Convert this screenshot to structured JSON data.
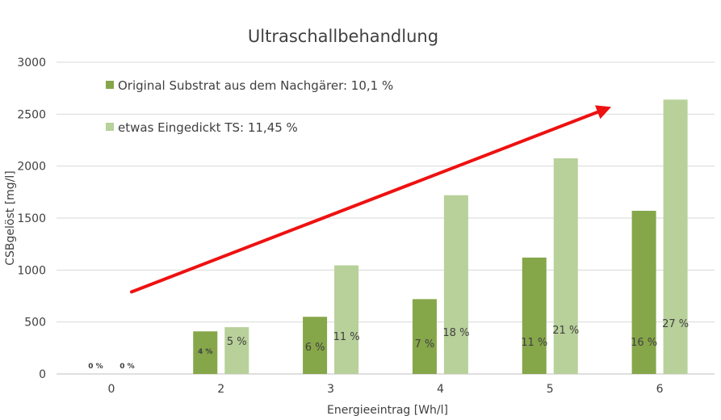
{
  "chart_data": {
    "type": "bar",
    "title": "Ultraschallbehandlung",
    "xlabel": "Energieeintrag [Wh/l]",
    "ylabel": "CSBgelöst [mg/l]",
    "categories": [
      "0",
      "2",
      "3",
      "4",
      "5",
      "6"
    ],
    "ylim": [
      0,
      3000
    ],
    "yticks": [
      "0",
      "500",
      "1000",
      "1500",
      "2000",
      "2500",
      "3000"
    ],
    "grid": true,
    "legend_position": "top-left",
    "series": [
      {
        "name": "Original Substrat aus dem Nachgärer: 10,1 %",
        "color": "#86a64a",
        "values": [
          0,
          410,
          550,
          720,
          1120,
          1570
        ],
        "labels": [
          "0 %",
          "4 %",
          "6 %",
          "7 %",
          "11 %",
          "16 %"
        ]
      },
      {
        "name": "etwas Eingedickt TS: 11,45 %",
        "color": "#b8d09a",
        "values": [
          0,
          450,
          1045,
          1720,
          2075,
          2640
        ],
        "labels": [
          "0 %",
          "5 %",
          "11 %",
          "18 %",
          "21 %",
          "27 %"
        ]
      }
    ],
    "annotation": {
      "type": "arrow",
      "color": "#ee1111",
      "from": [
        0.2,
        790
      ],
      "to": [
        6.3,
        2570
      ]
    }
  }
}
